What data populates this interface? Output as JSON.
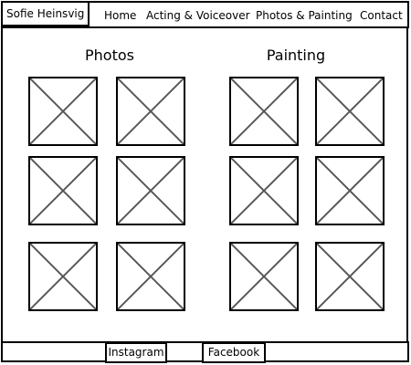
{
  "header": {
    "brand": "Sofie Heinsvig",
    "nav": [
      "Home",
      "Acting & Voiceover",
      "Photos & Painting",
      "Contact"
    ]
  },
  "sections": {
    "photos": {
      "title": "Photos"
    },
    "painting": {
      "title": "Painting"
    }
  },
  "footer": {
    "instagram": "Instagram",
    "facebook": "Facebook"
  }
}
